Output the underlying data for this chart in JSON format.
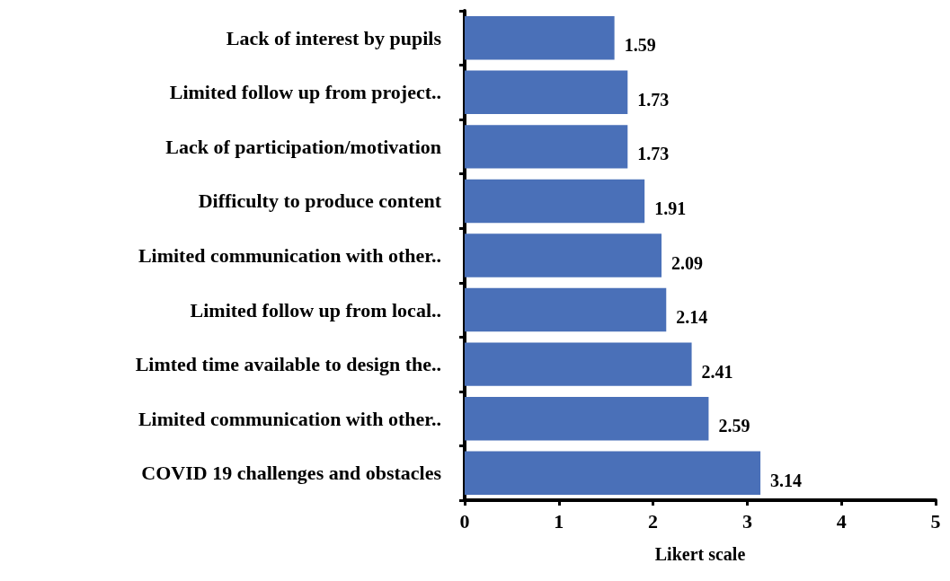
{
  "chart_data": {
    "type": "bar",
    "orientation": "horizontal",
    "xlabel": "Likert scale",
    "categories": [
      "Lack of interest by pupils",
      "Limited follow up from project..",
      "Lack of participation/motivation",
      "Difficulty to produce content",
      "Limited communication with other..",
      "Limited follow up from local..",
      "Limted time available to design the..",
      "Limited communication with other..",
      "COVID 19 challenges and obstacles"
    ],
    "values": [
      1.59,
      1.73,
      1.73,
      1.91,
      2.09,
      2.14,
      2.41,
      2.59,
      3.14
    ],
    "color": "#4a70b8",
    "xlim": [
      0,
      5
    ],
    "xticks": [
      0,
      1,
      2,
      3,
      4,
      5
    ],
    "data_labels": true
  }
}
